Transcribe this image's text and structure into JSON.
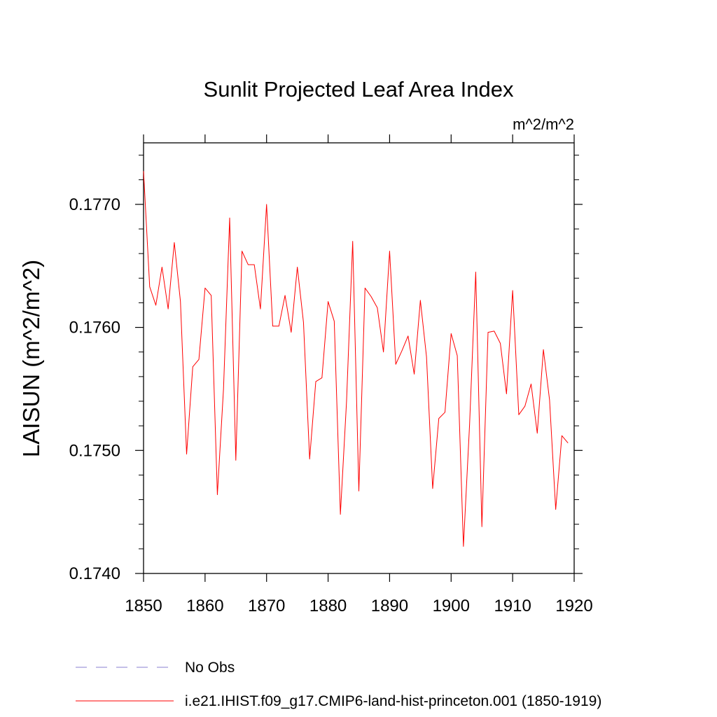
{
  "chart_data": {
    "type": "line",
    "title": "Sunlit Projected Leaf Area Index",
    "units": "m^2/m^2",
    "ylabel": "LAISUN  (m^2/m^2)",
    "xlabel": "",
    "xlim": [
      1850,
      1920
    ],
    "ylim": [
      0.174,
      0.1775
    ],
    "x_ticks": [
      1850,
      1860,
      1870,
      1880,
      1890,
      1900,
      1910,
      1920
    ],
    "x_tick_labels": [
      "1850",
      "1860",
      "1870",
      "1880",
      "1890",
      "1900",
      "1910",
      "1920"
    ],
    "y_ticks": [
      0.174,
      0.175,
      0.176,
      0.177
    ],
    "y_tick_labels": [
      "0.1740",
      "0.1750",
      "0.1760",
      "0.1770"
    ],
    "grid": false,
    "legend_position": "bottom",
    "series": [
      {
        "name": "No Obs",
        "color": "#8a7fd0",
        "dash": "dashed",
        "x": [],
        "y": []
      },
      {
        "name": "i.e21.IHIST.f09_g17.CMIP6-land-hist-princeton.001 (1850-1919)",
        "color": "#ff0000",
        "dash": "solid",
        "x": [
          1850,
          1851,
          1852,
          1853,
          1854,
          1855,
          1856,
          1857,
          1858,
          1859,
          1860,
          1861,
          1862,
          1863,
          1864,
          1865,
          1866,
          1867,
          1868,
          1869,
          1870,
          1871,
          1872,
          1873,
          1874,
          1875,
          1876,
          1877,
          1878,
          1879,
          1880,
          1881,
          1882,
          1883,
          1884,
          1885,
          1886,
          1887,
          1888,
          1889,
          1890,
          1891,
          1892,
          1893,
          1894,
          1895,
          1896,
          1897,
          1898,
          1899,
          1900,
          1901,
          1902,
          1903,
          1904,
          1905,
          1906,
          1907,
          1908,
          1909,
          1910,
          1911,
          1912,
          1913,
          1914,
          1915,
          1916,
          1917,
          1918,
          1919
        ],
        "y": [
          0.17727,
          0.17633,
          0.17618,
          0.17649,
          0.17615,
          0.17669,
          0.17621,
          0.17497,
          0.17568,
          0.17574,
          0.17632,
          0.17626,
          0.17464,
          0.1755,
          0.17689,
          0.17492,
          0.17662,
          0.17651,
          0.17651,
          0.17615,
          0.177,
          0.17601,
          0.17601,
          0.17626,
          0.17596,
          0.17649,
          0.17604,
          0.17493,
          0.17556,
          0.17559,
          0.17621,
          0.17605,
          0.17448,
          0.1754,
          0.1767,
          0.17467,
          0.17632,
          0.17625,
          0.17616,
          0.1758,
          0.17662,
          0.1757,
          0.17581,
          0.17593,
          0.17562,
          0.17622,
          0.17576,
          0.17469,
          0.17526,
          0.17531,
          0.17595,
          0.17577,
          0.17422,
          0.17521,
          0.17645,
          0.17438,
          0.17596,
          0.17597,
          0.17587,
          0.17546,
          0.1763,
          0.17529,
          0.17536,
          0.17554,
          0.17514,
          0.17582,
          0.17541,
          0.17452,
          0.17512,
          0.17506
        ]
      }
    ]
  }
}
